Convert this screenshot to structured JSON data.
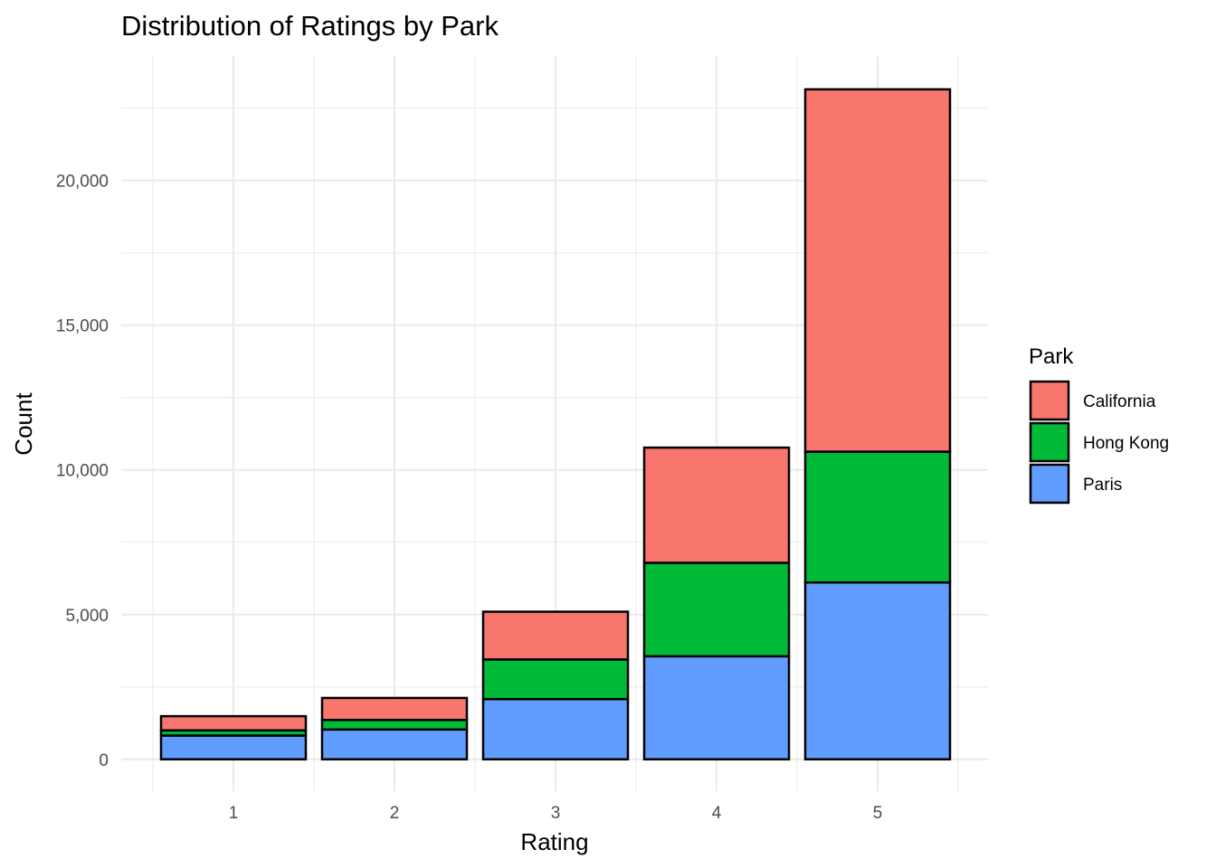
{
  "chart_data": {
    "type": "bar",
    "stacked": true,
    "title": "Distribution of Ratings by Park",
    "xlabel": "Rating",
    "ylabel": "Count",
    "categories": [
      "1",
      "2",
      "3",
      "4",
      "5"
    ],
    "y_ticks": [
      0,
      5000,
      10000,
      15000,
      20000
    ],
    "y_tick_labels": [
      "0",
      "5,000",
      "10,000",
      "15,000",
      "20,000"
    ],
    "ylim": [
      -1100,
      24300
    ],
    "grid": true,
    "legend": {
      "title": "Park",
      "position": "right"
    },
    "series": [
      {
        "name": "California",
        "color": "#F8766D",
        "values": [
          490,
          760,
          1650,
          3980,
          12520
        ]
      },
      {
        "name": "Hong Kong",
        "color": "#00BA38",
        "values": [
          180,
          330,
          1370,
          3230,
          4520
        ]
      },
      {
        "name": "Paris",
        "color": "#619CFF",
        "values": [
          820,
          1030,
          2080,
          3560,
          6110
        ]
      }
    ]
  }
}
